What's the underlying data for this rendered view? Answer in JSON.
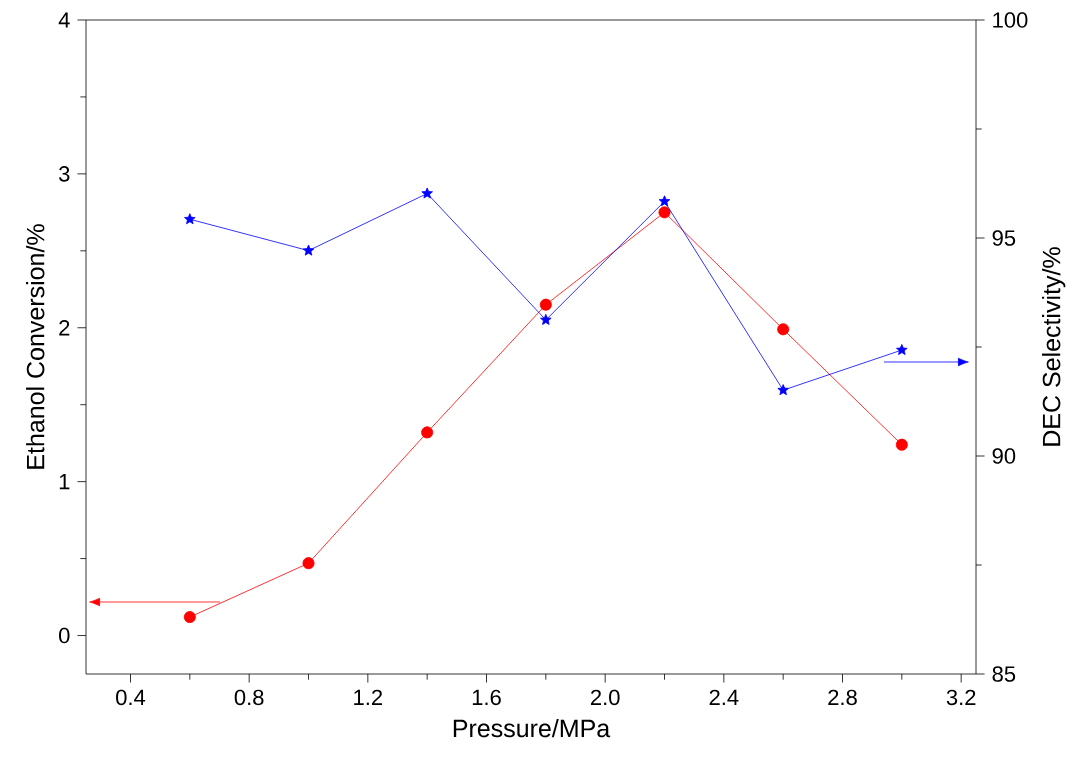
{
  "chart_data": {
    "type": "line",
    "xlabel": "Pressure/MPa",
    "ylabel": "Ethanol Conversion/%",
    "y2label": "DEC Selectivity/%",
    "x": [
      0.6,
      1.0,
      1.4,
      1.8,
      2.2,
      2.6,
      3.0
    ],
    "series": [
      {
        "color": "#ff0000",
        "marker": "circle",
        "values": [
          0.12,
          0.47,
          1.32,
          2.15,
          2.75,
          1.99,
          1.24
        ]
      },
      {
        "color": "#0000ff",
        "marker": "star",
        "axis": "y2",
        "values": [
          95.43,
          94.71,
          96.02,
          93.12,
          95.84,
          91.51,
          92.43
        ]
      }
    ],
    "xlim": [
      0.25,
      3.25
    ],
    "xticks": [
      0.4,
      0.8,
      1.2,
      1.6,
      {
        "value": 2,
        "label": "2.0"
      },
      2.4,
      2.8,
      3.2
    ],
    "ylim": [
      -0.25,
      4
    ],
    "yticks": [
      0,
      1,
      2,
      3,
      4
    ],
    "y2lim": [
      85,
      100
    ],
    "y2ticks": [
      85,
      90,
      95,
      100
    ],
    "grid": false,
    "line_style": "solid"
  }
}
